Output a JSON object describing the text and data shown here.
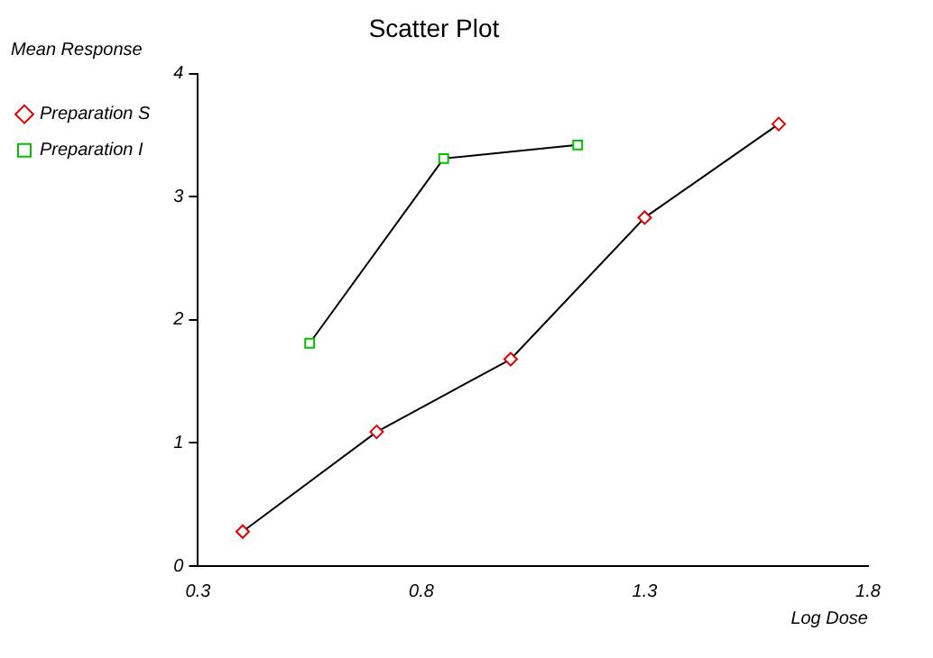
{
  "chart_data": {
    "type": "line",
    "title": "Scatter Plot",
    "xlabel": "Log Dose",
    "ylabel": "Mean Response",
    "series": [
      {
        "name": "Preparation S",
        "color": "#e00000",
        "marker": "diamond",
        "x": [
          0.4,
          0.7,
          1.0,
          1.3,
          1.6
        ],
        "values": [
          0.28,
          1.09,
          1.68,
          2.83,
          3.59
        ]
      },
      {
        "name": "Preparation I",
        "color": "#00c000",
        "marker": "square",
        "x": [
          0.55,
          0.85,
          1.15
        ],
        "values": [
          1.81,
          3.31,
          3.42
        ]
      }
    ],
    "xlim": [
      0.3,
      1.8
    ],
    "xticks": [
      0.3,
      0.8,
      1.3,
      1.8
    ],
    "ylim": [
      0,
      4
    ],
    "yticks": [
      0,
      1,
      2,
      3,
      4
    ],
    "grid": false,
    "legend": "left"
  }
}
